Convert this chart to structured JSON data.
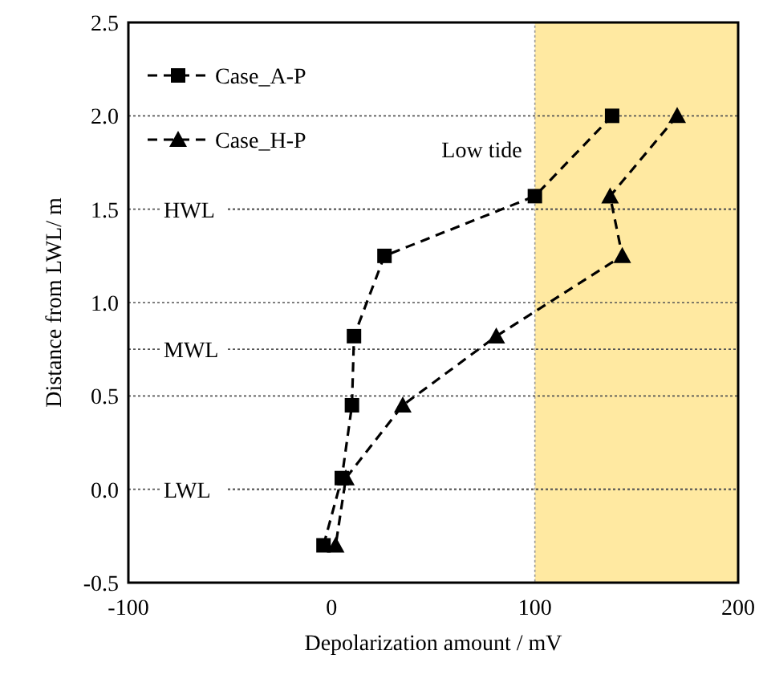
{
  "chart_data": {
    "type": "line",
    "xlabel": "Depolarization amount / mV",
    "ylabel": "Distance from LWL/ m",
    "xlim": [
      -100,
      200
    ],
    "xticks": [
      -100,
      0,
      100,
      200
    ],
    "ylim": [
      -0.5,
      2.5
    ],
    "yticks": [
      -0.5,
      {
        "value": 0,
        "label": "0.0"
      },
      0.5,
      {
        "value": 1,
        "label": "1.0"
      },
      1.5,
      {
        "value": 2,
        "label": "2.0"
      },
      2.5
    ],
    "grid": "y",
    "legend": "top left",
    "line_style": "dashed",
    "series": [
      {
        "name": "Case_A-P",
        "color": "#000000",
        "marker": "square",
        "x": [
          138,
          100,
          26,
          11,
          10,
          5,
          -4
        ],
        "values": [
          2.0,
          1.57,
          1.25,
          0.82,
          0.45,
          0.06,
          -0.3
        ]
      },
      {
        "name": "Case_H-P",
        "color": "#000000",
        "marker": "triangle",
        "x": [
          170,
          137,
          143,
          81,
          35,
          7,
          2
        ],
        "values": [
          2.0,
          1.57,
          1.25,
          0.82,
          0.45,
          0.06,
          -0.3
        ]
      }
    ],
    "ref_lines": [
      {
        "axis": "y",
        "value": 1.5,
        "label": "HWL",
        "line_style": "dotted"
      },
      {
        "axis": "y",
        "value": 0.75,
        "label": "MWL",
        "line_style": "dotted"
      },
      {
        "axis": "y",
        "value": 0,
        "label": "LWL",
        "line_style": "dotted"
      }
    ],
    "bands": [
      {
        "axis": "x",
        "from": 100,
        "to": 200,
        "label": "Low tide",
        "color": "#ffe38a"
      }
    ]
  }
}
